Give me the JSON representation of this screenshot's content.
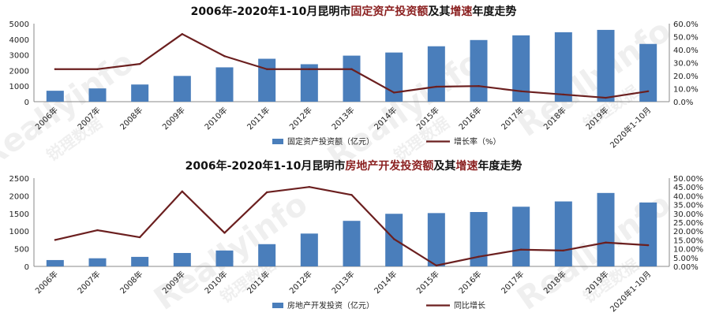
{
  "chart_data": [
    {
      "type": "bar",
      "title_parts": [
        "2006年-2020年1-10月昆明市",
        "固定资产投资额",
        "及其",
        "增速",
        "年度走势"
      ],
      "categories": [
        "2006年",
        "2007年",
        "2008年",
        "2009年",
        "2010年",
        "2011年",
        "2012年",
        "2013年",
        "2014年",
        "2015年",
        "2016年",
        "2017年",
        "2018年",
        "2019年",
        "2020年1-10月"
      ],
      "series": [
        {
          "name": "固定资产投资额（亿元）",
          "type": "bar",
          "axis": "left",
          "values": [
            700,
            850,
            1100,
            1650,
            2200,
            2750,
            2400,
            2950,
            3150,
            3550,
            3950,
            4250,
            4450,
            4600,
            3700
          ]
        },
        {
          "name": "增长率（%）",
          "type": "line",
          "axis": "right",
          "values": [
            25,
            25,
            29,
            52,
            35,
            25,
            25,
            25,
            7,
            11.5,
            12,
            8,
            5.5,
            3,
            8
          ]
        }
      ],
      "y_left": {
        "min": 0,
        "max": 5000,
        "ticks": [
          "0",
          "1000",
          "2000",
          "3000",
          "4000",
          "5000"
        ]
      },
      "y_right": {
        "min": 0,
        "max": 60,
        "ticks": [
          "0.0%",
          "10.0%",
          "20.0%",
          "30.0%",
          "40.0%",
          "50.0%",
          "60.0%"
        ]
      },
      "colors": {
        "bar": "#4a7ebb",
        "line": "#6b1f1f",
        "highlight": "#8b2020"
      },
      "legend": "bottom",
      "grid": false
    },
    {
      "type": "bar",
      "title_parts": [
        "2006年-2020年1-10月昆明市",
        "房地产开发投资额",
        "及其",
        "增速",
        "年度走势"
      ],
      "categories": [
        "2006年",
        "2007年",
        "2008年",
        "2009年",
        "2010年",
        "2011年",
        "2012年",
        "2013年",
        "2014年",
        "2015年",
        "2016年",
        "2017年",
        "2018年",
        "2019年",
        "2020年1-10月"
      ],
      "series": [
        {
          "name": "房地产开发投资（亿元）",
          "type": "bar",
          "axis": "left",
          "values": [
            180,
            230,
            270,
            380,
            450,
            630,
            930,
            1290,
            1490,
            1510,
            1540,
            1690,
            1840,
            2080,
            1810
          ]
        },
        {
          "name": "同比增长",
          "type": "line",
          "axis": "right",
          "values": [
            15,
            20.5,
            16.5,
            42.5,
            19,
            42,
            45,
            40.5,
            15.5,
            0.5,
            5.5,
            9.5,
            9,
            13.5,
            12
          ]
        }
      ],
      "y_left": {
        "min": 0,
        "max": 2500,
        "ticks": [
          "0",
          "500",
          "1000",
          "1500",
          "2000",
          "2500"
        ]
      },
      "y_right": {
        "min": 0,
        "max": 50,
        "ticks": [
          "0.00%",
          "5.00%",
          "10.00%",
          "15.00%",
          "20.00%",
          "25.00%",
          "30.00%",
          "35.00%",
          "40.00%",
          "45.00%",
          "50.00%"
        ]
      },
      "colors": {
        "bar": "#4a7ebb",
        "line": "#6b1f1f",
        "highlight": "#8b2020"
      },
      "legend": "bottom",
      "grid": false
    }
  ],
  "watermark": {
    "text_en": "Reallyinfo",
    "text_cn": "锐理数据"
  }
}
